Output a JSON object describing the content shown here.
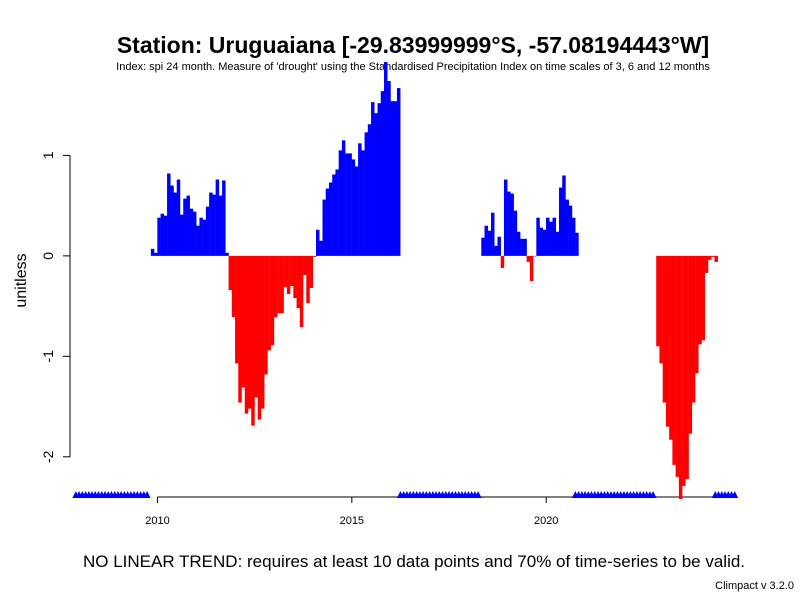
{
  "chart_data": {
    "type": "bar",
    "title": "Station: Uruguaiana [-29.83999999°S, -57.08194443°W]",
    "subtitle": "Index: spi 24 month. Measure of 'drought' using the Standardised Precipitation Index on time scales of 3, 6 and 12 months",
    "ylabel": "unitless",
    "xlabel": "",
    "ylim": [
      -2.4,
      1.85
    ],
    "xlim": [
      2007.75,
      2025.5
    ],
    "yticks": [
      {
        "value": -2,
        "label": "-2"
      },
      {
        "value": -1,
        "label": "-1"
      },
      {
        "value": 0,
        "label": "0"
      },
      {
        "value": 1,
        "label": "1"
      }
    ],
    "xticks": [
      {
        "value": 2010,
        "label": "2010"
      },
      {
        "value": 2015,
        "label": "2015"
      },
      {
        "value": 2020,
        "label": "2020"
      }
    ],
    "positive_color": "#0000ff",
    "negative_color": "#ff0000",
    "missing_marker_color": "#0000ff",
    "note": "NO LINEAR TREND: requires at least 10 data points and 70% of time-series to be valid.",
    "credit": "Climpact v 3.2.0",
    "series": [
      {
        "start": 2009.83,
        "step": 0.0833,
        "values": [
          0.07,
          0.03,
          0.38,
          0.42,
          0.4,
          0.82,
          0.7,
          0.63,
          0.76,
          0.41,
          0.57,
          0.6,
          0.47,
          0.44,
          0.3,
          0.38,
          0.36,
          0.49,
          0.63,
          0.61,
          0.76,
          0.6,
          0.75,
          0.03,
          -0.34,
          -0.61,
          -1.07,
          -1.46,
          -1.31,
          -1.57,
          -1.52,
          -1.69,
          -1.41,
          -1.63,
          -1.52,
          -1.18,
          -0.94,
          -0.89,
          -0.61,
          -0.57,
          -0.57,
          -0.31,
          -0.38,
          -0.3,
          -0.42,
          -0.52,
          -0.71,
          -0.19,
          -0.47,
          -0.32,
          -0.01,
          0.26,
          0.15,
          0.56,
          0.67,
          0.73,
          0.81,
          0.86,
          1.05,
          1.15,
          1.02,
          1.02,
          0.96,
          0.89,
          1.12,
          1.05,
          1.23,
          1.31,
          1.53,
          1.42,
          1.52,
          1.64,
          1.93,
          1.74,
          1.54,
          1.54,
          1.67
        ]
      },
      {
        "start": 2018.33,
        "step": 0.0833,
        "values": [
          0.18,
          0.3,
          0.25,
          0.43,
          0.1,
          0.19,
          -0.12,
          0.76,
          0.64,
          0.62,
          0.45,
          0.24,
          0.17,
          0.17,
          -0.06,
          -0.25,
          0.0,
          0.38,
          0.28,
          0.26,
          0.38,
          0.34,
          0.38,
          0.24,
          0.68,
          0.8,
          0.56,
          0.5,
          0.38,
          0.23
        ]
      },
      {
        "start": 2022.83,
        "step": 0.0833,
        "values": [
          -0.9,
          -1.07,
          -1.46,
          -1.7,
          -1.83,
          -2.08,
          -2.2,
          -2.42,
          -2.29,
          -2.22,
          -1.77,
          -1.46,
          -1.17,
          -0.88,
          -0.84,
          -0.17,
          -0.04,
          -0.01,
          -0.06
        ]
      }
    ],
    "missing_ranges": [
      [
        2007.9,
        2009.8
      ],
      [
        2016.25,
        2018.25
      ],
      [
        2020.75,
        2022.75
      ],
      [
        2024.35,
        2024.9
      ]
    ]
  }
}
